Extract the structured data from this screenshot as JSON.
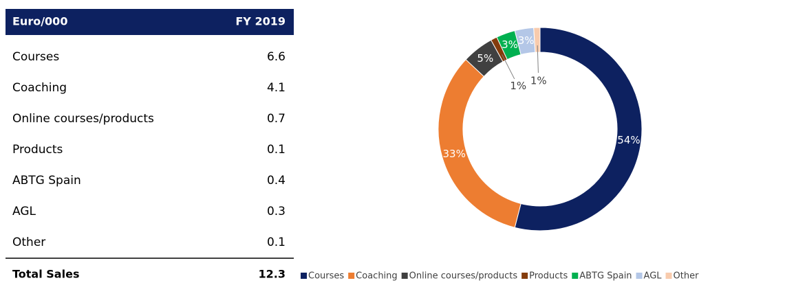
{
  "table": {
    "header": [
      "Euro/000",
      "FY 2019"
    ],
    "rows": [
      [
        "Courses",
        "6.6"
      ],
      [
        "Coaching",
        "4.1"
      ],
      [
        "Online courses/products",
        "0.7"
      ],
      [
        "Products",
        "0.1"
      ],
      [
        "ABTG Spain",
        "0.4"
      ],
      [
        "AGL",
        "0.3"
      ],
      [
        "Other",
        "0.1"
      ]
    ],
    "total": [
      "Total Sales",
      "12.3"
    ]
  },
  "chart_data": {
    "type": "pie",
    "donut": true,
    "categories": [
      "Courses",
      "Coaching",
      "Online courses/products",
      "Products",
      "ABTG Spain",
      "AGL",
      "Other"
    ],
    "values": [
      54,
      33,
      5,
      1,
      3,
      3,
      1
    ],
    "value_labels": [
      "54%",
      "33%",
      "5%",
      "1%",
      "3%",
      "3%",
      "1%"
    ],
    "colors": [
      "#0d2160",
      "#ed7d31",
      "#404040",
      "#843c0c",
      "#00b050",
      "#b4c7e7",
      "#f8cbad"
    ],
    "legend": "bottom"
  }
}
